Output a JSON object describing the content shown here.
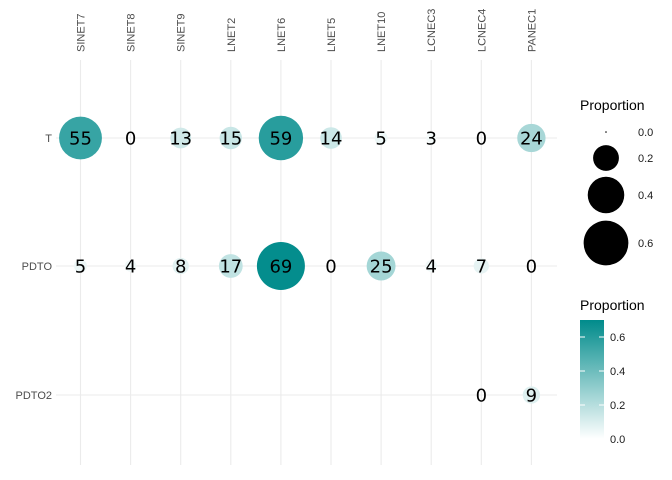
{
  "chart_data": {
    "type": "bubble",
    "title": "",
    "xlabel": "",
    "ylabel": "",
    "x_position": "top",
    "categories": [
      "SINET7",
      "SINET8",
      "SINET9",
      "LNET2",
      "LNET6",
      "LNET5",
      "LNET10",
      "LCNEC3",
      "LCNEC4",
      "PANEC1"
    ],
    "rows": [
      "T",
      "PDTO",
      "PDTO2"
    ],
    "cells": [
      {
        "row": "T",
        "col": "SINET7",
        "label": "55",
        "proportion": 0.55
      },
      {
        "row": "T",
        "col": "SINET8",
        "label": "0",
        "proportion": 0.0
      },
      {
        "row": "T",
        "col": "SINET9",
        "label": "13",
        "proportion": 0.13
      },
      {
        "row": "T",
        "col": "LNET2",
        "label": "15",
        "proportion": 0.15
      },
      {
        "row": "T",
        "col": "LNET6",
        "label": "59",
        "proportion": 0.59
      },
      {
        "row": "T",
        "col": "LNET5",
        "label": "14",
        "proportion": 0.14
      },
      {
        "row": "T",
        "col": "LNET10",
        "label": "5",
        "proportion": 0.05
      },
      {
        "row": "T",
        "col": "LCNEC3",
        "label": "3",
        "proportion": 0.03
      },
      {
        "row": "T",
        "col": "LCNEC4",
        "label": "0",
        "proportion": 0.0
      },
      {
        "row": "T",
        "col": "PANEC1",
        "label": "24",
        "proportion": 0.24
      },
      {
        "row": "PDTO",
        "col": "SINET7",
        "label": "5",
        "proportion": 0.05
      },
      {
        "row": "PDTO",
        "col": "SINET8",
        "label": "4",
        "proportion": 0.04
      },
      {
        "row": "PDTO",
        "col": "SINET9",
        "label": "8",
        "proportion": 0.08
      },
      {
        "row": "PDTO",
        "col": "LNET2",
        "label": "17",
        "proportion": 0.17
      },
      {
        "row": "PDTO",
        "col": "LNET6",
        "label": "69",
        "proportion": 0.69
      },
      {
        "row": "PDTO",
        "col": "LNET5",
        "label": "0",
        "proportion": 0.0
      },
      {
        "row": "PDTO",
        "col": "LNET10",
        "label": "25",
        "proportion": 0.25
      },
      {
        "row": "PDTO",
        "col": "LCNEC3",
        "label": "4",
        "proportion": 0.04
      },
      {
        "row": "PDTO",
        "col": "LCNEC4",
        "label": "7",
        "proportion": 0.07
      },
      {
        "row": "PDTO",
        "col": "PANEC1",
        "label": "0",
        "proportion": 0.0
      },
      {
        "row": "PDTO2",
        "col": "LCNEC4",
        "label": "0",
        "proportion": 0.0
      },
      {
        "row": "PDTO2",
        "col": "PANEC1",
        "label": "9",
        "proportion": 0.09
      }
    ],
    "size_legend": {
      "title": "Proportion",
      "breaks": [
        0.0,
        0.2,
        0.4,
        0.6
      ],
      "labels": [
        "0.0",
        "0.2",
        "0.4",
        "0.6"
      ]
    },
    "color_legend": {
      "title": "Proportion",
      "low_color": "#ffffff",
      "high_color": "#008b8b",
      "range": [
        0,
        0.7
      ],
      "breaks": [
        0.0,
        0.2,
        0.4,
        0.6
      ],
      "labels": [
        "0.0",
        "0.2",
        "0.4",
        "0.6"
      ]
    },
    "grid": true,
    "legend_position": "right"
  }
}
